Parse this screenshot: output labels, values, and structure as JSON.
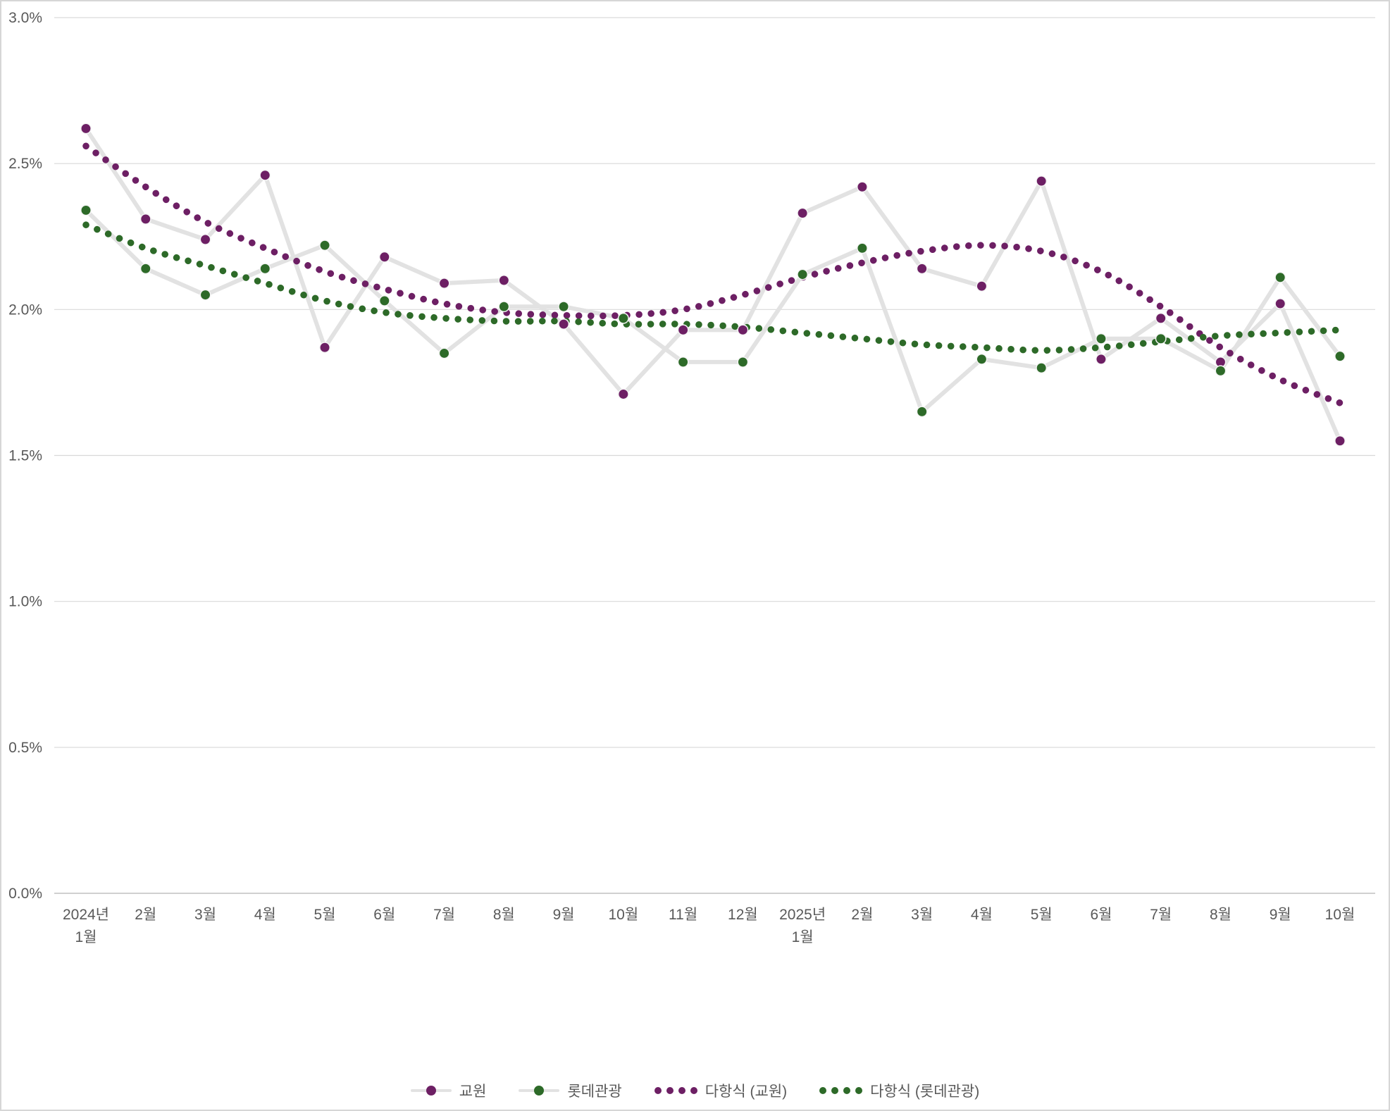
{
  "chart_data": {
    "type": "line",
    "title": "",
    "x_axis": {
      "categories": [
        "2024년\n1월",
        "2월",
        "3월",
        "4월",
        "5월",
        "6월",
        "7월",
        "8월",
        "9월",
        "10월",
        "11월",
        "12월",
        "2025년\n1월",
        "2월",
        "3월",
        "4월",
        "5월",
        "6월",
        "7월",
        "8월",
        "9월",
        "10월"
      ]
    },
    "y_axis": {
      "min": 0.0,
      "max": 3.0,
      "step": 0.5,
      "tick_labels": [
        "0.0%",
        "0.5%",
        "1.0%",
        "1.5%",
        "2.0%",
        "2.5%",
        "3.0%"
      ]
    },
    "grid": "horizontal",
    "series": [
      {
        "name": "교원",
        "kind": "scatter-line",
        "marker_color": "#6D1F64",
        "line_color": "#e2e2e2",
        "values": [
          2.62,
          2.31,
          2.24,
          2.46,
          1.87,
          2.18,
          2.09,
          2.1,
          1.95,
          1.71,
          1.93,
          1.93,
          2.33,
          2.42,
          2.14,
          2.08,
          2.44,
          1.83,
          1.97,
          1.82,
          2.02,
          1.55
        ]
      },
      {
        "name": "롯데관광",
        "kind": "scatter-line",
        "marker_color": "#2D6A28",
        "line_color": "#e2e2e2",
        "values": [
          2.34,
          2.14,
          2.05,
          2.14,
          2.22,
          2.03,
          1.85,
          2.01,
          2.01,
          1.97,
          1.82,
          1.82,
          2.12,
          2.21,
          1.65,
          1.83,
          1.8,
          1.9,
          1.9,
          1.79,
          2.11,
          1.84
        ]
      },
      {
        "name": "다항식 (교원)",
        "kind": "trendline-dotted",
        "marker_color": "#6D1F64",
        "values": [
          2.56,
          2.42,
          2.3,
          2.21,
          2.13,
          2.07,
          2.02,
          1.99,
          1.98,
          1.98,
          2.0,
          2.05,
          2.11,
          2.16,
          2.2,
          2.22,
          2.2,
          2.13,
          2.01,
          1.87,
          1.76,
          1.68
        ]
      },
      {
        "name": "다항식 (롯데관광)",
        "kind": "trendline-dotted",
        "marker_color": "#2D6A28",
        "values": [
          2.29,
          2.21,
          2.15,
          2.09,
          2.03,
          1.99,
          1.97,
          1.96,
          1.96,
          1.95,
          1.95,
          1.94,
          1.92,
          1.9,
          1.88,
          1.87,
          1.86,
          1.87,
          1.89,
          1.91,
          1.92,
          1.93
        ]
      }
    ],
    "legend": {
      "position": "bottom",
      "items": [
        "교원",
        "롯데관광",
        "다항식 (교원)",
        "다항식 (롯데관광)"
      ]
    },
    "colors": {
      "gridline": "#d9d9d9",
      "axis_line": "#c0c0c0",
      "tick_text": "#595959",
      "series_connector": "#e2e2e2"
    }
  }
}
